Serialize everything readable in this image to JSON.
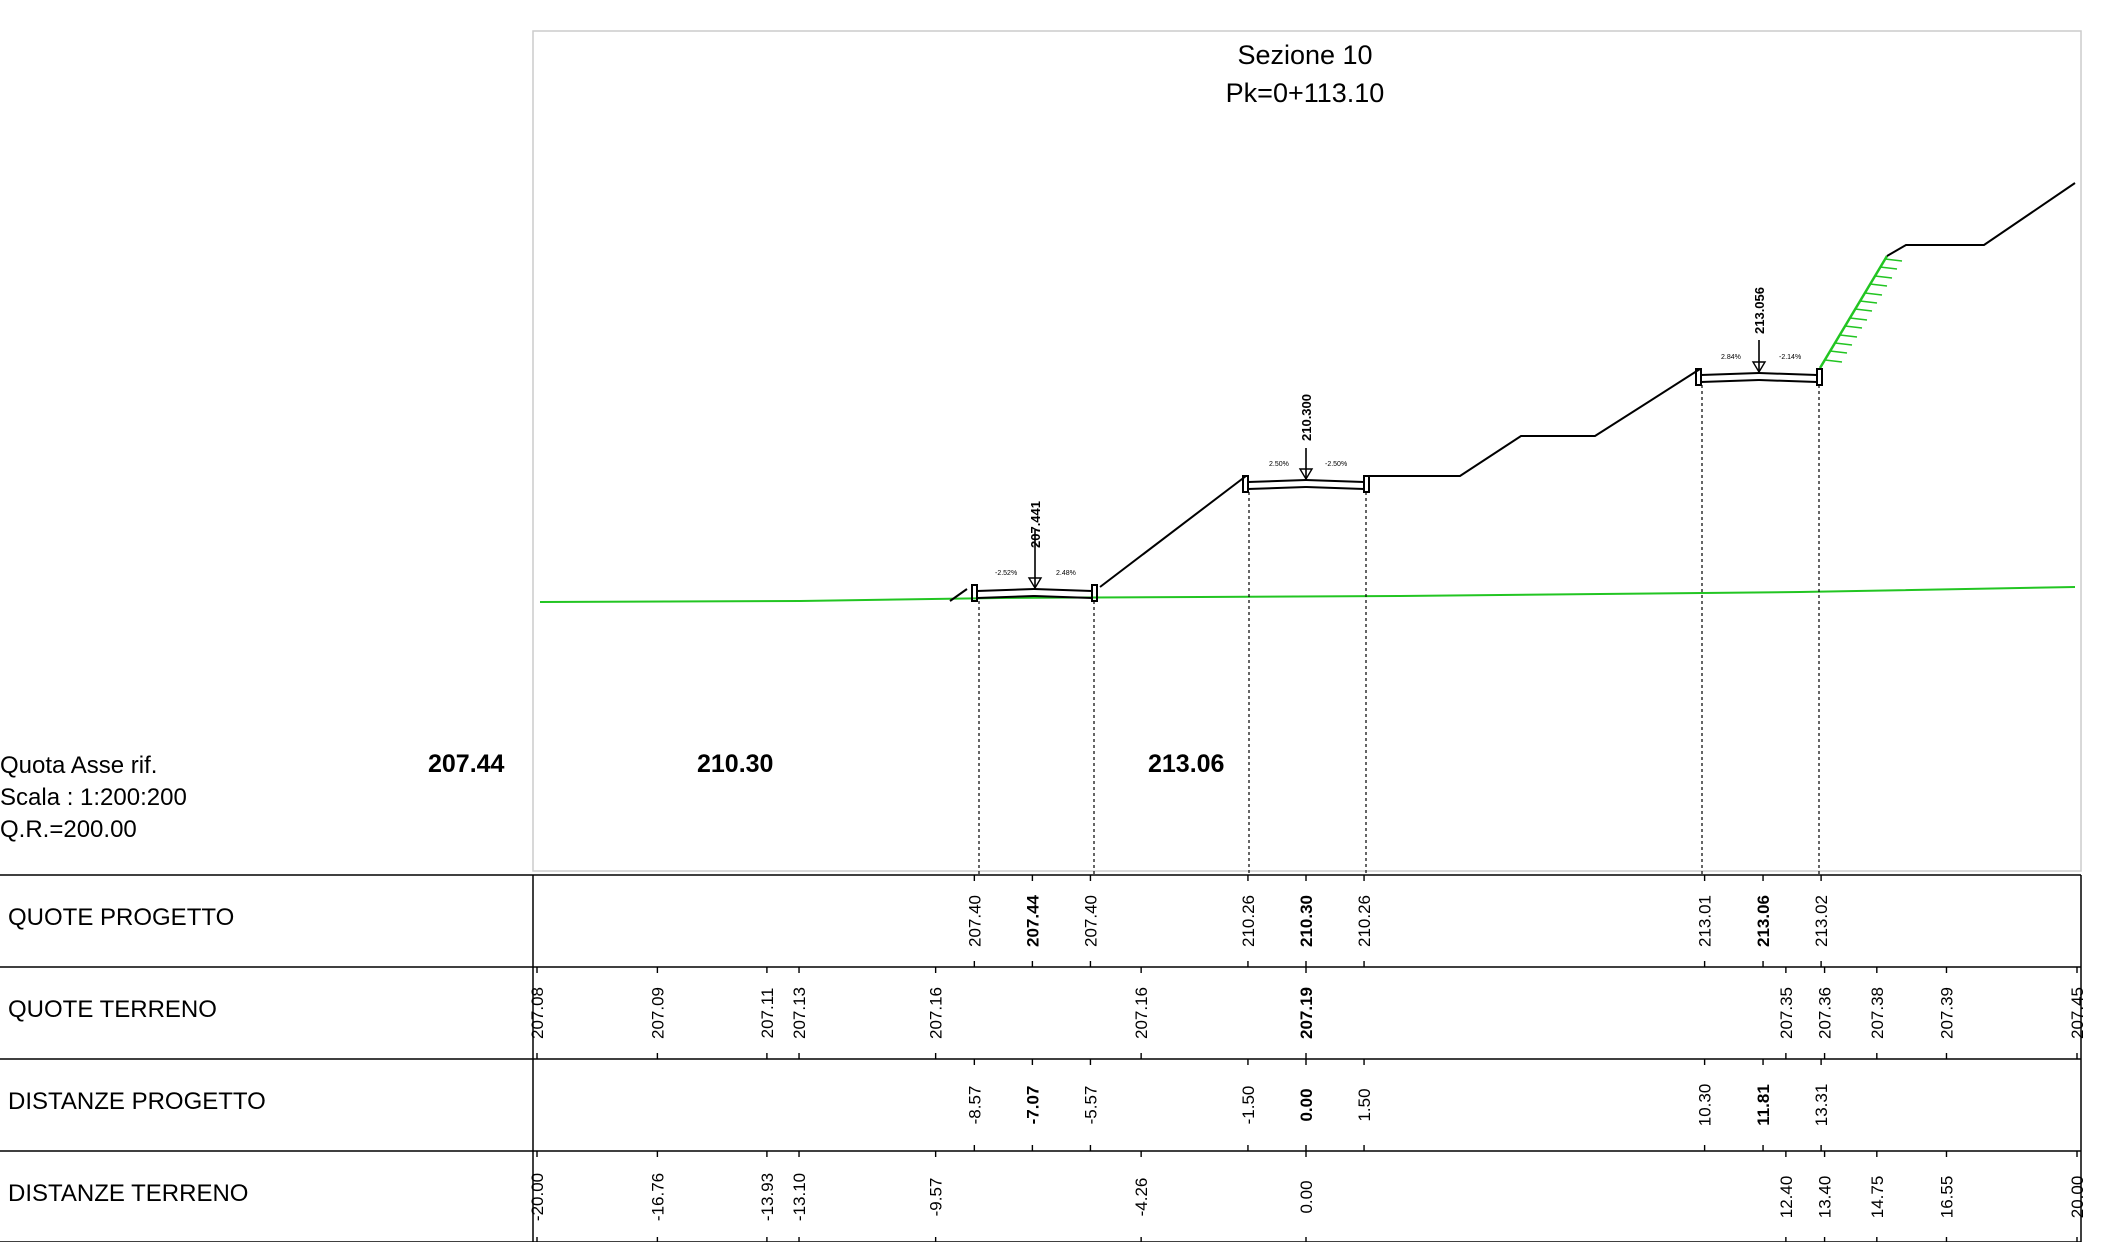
{
  "title": {
    "line1": "Sezione 10",
    "line2": "Pk=0+113.10"
  },
  "info": {
    "quota_label": "Quota Asse rif.",
    "scale": "Scala : 1:200:200",
    "qr": "Q.R.=200.00"
  },
  "quota_values": [
    "207.44",
    "210.30",
    "213.06"
  ],
  "rows": [
    {
      "label": "QUOTE PROGETTO"
    },
    {
      "label": "QUOTE TERRENO"
    },
    {
      "label": "DISTANZE PROGETTO"
    },
    {
      "label": "DISTANZE TERRENO"
    }
  ],
  "axis_labels": [
    "207.441",
    "210.300",
    "213.056"
  ],
  "slope_labels": [
    "-2.52%",
    "2.48%",
    "2.50%",
    "-2.50%",
    "2.84%",
    "-2.14%"
  ],
  "chart_data": {
    "type": "table",
    "platforms": [
      {
        "axis_elevation": "207.441",
        "left_slope": "-2.52%",
        "right_slope": "2.48%",
        "offsets": [
          "-8.57",
          "-7.07",
          "-5.57"
        ],
        "elevations": [
          "207.40",
          "207.44",
          "207.40"
        ]
      },
      {
        "axis_elevation": "210.300",
        "left_slope": "2.50%",
        "right_slope": "-2.50%",
        "offsets": [
          "-1.50",
          "0.00",
          "1.50"
        ],
        "elevations": [
          "210.26",
          "210.30",
          "210.26"
        ]
      },
      {
        "axis_elevation": "213.056",
        "left_slope": "2.84%",
        "right_slope": "-2.14%",
        "offsets": [
          "10.30",
          "11.81",
          "13.31"
        ],
        "elevations": [
          "213.01",
          "213.06",
          "213.02"
        ]
      }
    ],
    "project": [
      {
        "offset": "-8.57",
        "elevation": "207.40"
      },
      {
        "offset": "-7.07",
        "elevation": "207.44",
        "axis": true
      },
      {
        "offset": "-5.57",
        "elevation": "207.40"
      },
      {
        "offset": "-1.50",
        "elevation": "210.26"
      },
      {
        "offset": "0.00",
        "elevation": "210.30",
        "axis": true
      },
      {
        "offset": "1.50",
        "elevation": "210.26"
      },
      {
        "offset": "10.30",
        "elevation": "213.01"
      },
      {
        "offset": "11.81",
        "elevation": "213.06",
        "axis": true
      },
      {
        "offset": "13.31",
        "elevation": "213.02"
      }
    ],
    "terrain": [
      {
        "offset": "-20.00",
        "elevation": "207.08"
      },
      {
        "offset": "-16.76",
        "elevation": "207.09"
      },
      {
        "offset": "-13.93",
        "elevation": "207.11"
      },
      {
        "offset": "-13.10",
        "elevation": "207.13"
      },
      {
        "offset": "-9.57",
        "elevation": "207.16"
      },
      {
        "offset": "-4.26",
        "elevation": "207.16"
      },
      {
        "offset": "0.00",
        "elevation": "207.19",
        "axis": true
      },
      {
        "offset": "12.40",
        "elevation": "207.35"
      },
      {
        "offset": "13.40",
        "elevation": "207.36"
      },
      {
        "offset": "14.75",
        "elevation": "207.38"
      },
      {
        "offset": "16.55",
        "elevation": "207.39"
      },
      {
        "offset": "20.00",
        "elevation": "207.45"
      }
    ]
  },
  "colors": {
    "terrain": "#22c522",
    "lines": "#000000",
    "frame": "#cccccc"
  }
}
